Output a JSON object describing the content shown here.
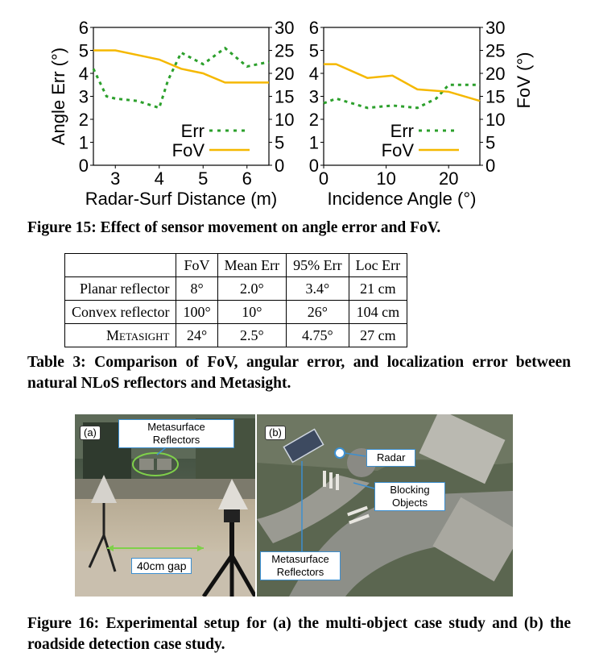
{
  "figure15": {
    "caption": "Figure 15: Effect of sensor movement on angle error and FoV.",
    "chart_data": [
      {
        "type": "line",
        "xlabel": "Radar-Surf Distance (m)",
        "ylabel_left": "Angle Err (°)",
        "xlim": [
          2.5,
          6.5
        ],
        "ylim_left": [
          0,
          6
        ],
        "ylim_right": [
          0,
          30
        ],
        "xticks": [
          "3",
          "4",
          "5",
          "6"
        ],
        "yticks_left": [
          "0",
          "1",
          "2",
          "3",
          "4",
          "5",
          "6"
        ],
        "yticks_right": [
          "0",
          "5",
          "10",
          "15",
          "20",
          "25",
          "30"
        ],
        "legend": [
          "Err",
          "FoV"
        ],
        "series": [
          {
            "name": "Err",
            "axis": "left",
            "style": "dotted",
            "color": "#2ca02c",
            "x": [
              2.5,
              2.8,
              3.0,
              3.5,
              4.0,
              4.2,
              4.5,
              5.0,
              5.5,
              6.0,
              6.5
            ],
            "y": [
              4.2,
              3.0,
              2.9,
              2.8,
              2.5,
              3.7,
              4.9,
              4.4,
              5.1,
              4.3,
              4.5
            ]
          },
          {
            "name": "FoV",
            "axis": "right",
            "style": "solid",
            "color": "#f5b800",
            "x": [
              2.5,
              3.0,
              3.5,
              4.0,
              4.5,
              5.0,
              5.5,
              6.0,
              6.5
            ],
            "y": [
              25,
              25,
              24,
              23,
              21,
              20,
              18,
              18,
              18
            ]
          }
        ]
      },
      {
        "type": "line",
        "xlabel": "Incidence Angle (°)",
        "ylabel_right": "FoV (°)",
        "xlim": [
          0,
          25
        ],
        "ylim_left": [
          0,
          6
        ],
        "ylim_right": [
          0,
          30
        ],
        "xticks": [
          "0",
          "10",
          "20"
        ],
        "yticks_left": [
          "0",
          "1",
          "2",
          "3",
          "4",
          "5",
          "6"
        ],
        "yticks_right": [
          "0",
          "5",
          "10",
          "15",
          "20",
          "25",
          "30"
        ],
        "legend": [
          "Err",
          "FoV"
        ],
        "series": [
          {
            "name": "Err",
            "axis": "left",
            "style": "dotted",
            "color": "#2ca02c",
            "x": [
              0,
              2,
              7,
              11,
              15,
              18,
              20,
              25
            ],
            "y": [
              2.7,
              2.9,
              2.5,
              2.6,
              2.5,
              2.9,
              3.5,
              3.5
            ]
          },
          {
            "name": "FoV",
            "axis": "right",
            "style": "solid",
            "color": "#f5b800",
            "x": [
              0,
              2,
              7,
              11,
              15,
              20,
              25
            ],
            "y": [
              22,
              22,
              19,
              19.5,
              16.5,
              16,
              14
            ]
          }
        ]
      }
    ]
  },
  "table3": {
    "headers": [
      "",
      "FoV",
      "Mean Err",
      "95% Err",
      "Loc Err"
    ],
    "rows": [
      [
        "Planar reflector",
        "8°",
        "2.0°",
        "3.4°",
        "21 cm"
      ],
      [
        "Convex reflector",
        "100°",
        "10°",
        "26°",
        "104 cm"
      ],
      [
        "Metasight",
        "24°",
        "2.5°",
        "4.75°",
        "27 cm"
      ]
    ],
    "caption": "Table 3: Comparison of FoV, angular error, and localization error between natural NLoS reflectors and Metasight."
  },
  "figure16": {
    "panel_a": {
      "tag": "(a)",
      "label_reflectors_line1": "Metasurface",
      "label_reflectors_line2": "Reflectors",
      "label_gap": "40cm gap"
    },
    "panel_b": {
      "tag": "(b)",
      "label_radar": "Radar",
      "label_blocking_line1": "Blocking",
      "label_blocking_line2": "Objects",
      "label_reflectors_line1": "Metasurface",
      "label_reflectors_line2": "Reflectors"
    },
    "caption": "Figure 16: Experimental setup for (a) the multi-object case study and (b) the roadside detection case study."
  }
}
